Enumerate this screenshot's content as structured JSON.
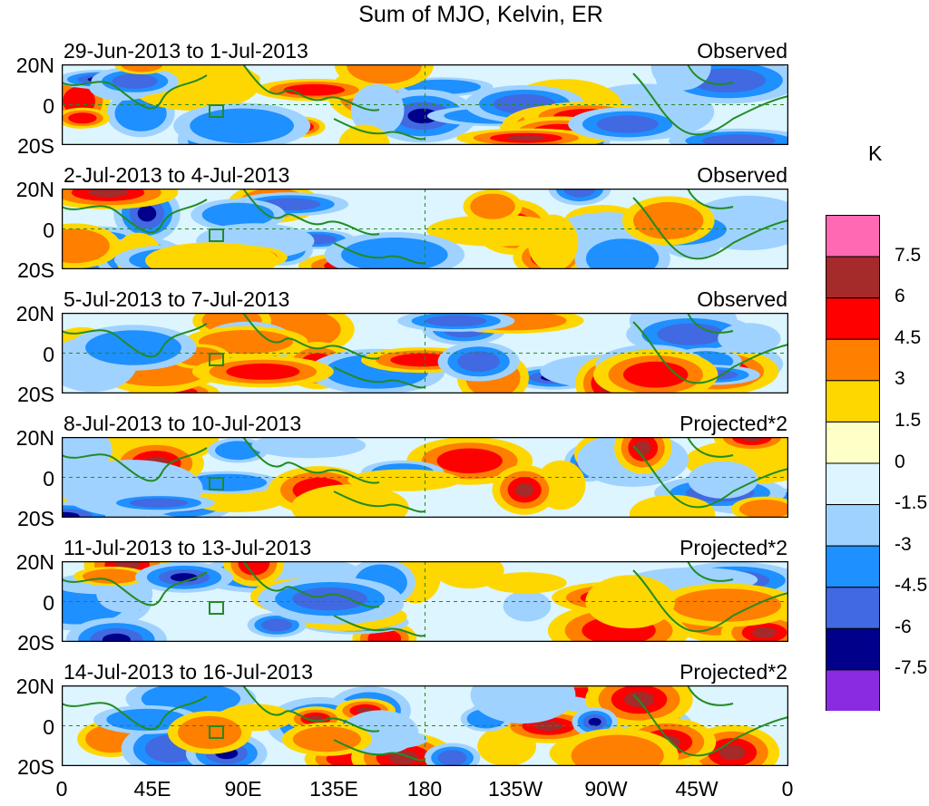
{
  "title": "Sum of MJO, Kelvin, ER",
  "y_ticks": [
    "20N",
    "0",
    "20S"
  ],
  "x_ticks": [
    "0",
    "45E",
    "90E",
    "135E",
    "180",
    "135W",
    "90W",
    "45W",
    "0"
  ],
  "colorbar": {
    "unit": "K",
    "labels": [
      "7.5",
      "6",
      "4.5",
      "3",
      "1.5",
      "0",
      "-1.5",
      "-3",
      "-4.5",
      "-6",
      "-7.5"
    ],
    "colors": [
      "#ff69b4",
      "#a52a2a",
      "#ff0000",
      "#ff7f00",
      "#ffd700",
      "#ffffc8",
      "#dcf5ff",
      "#a0d2ff",
      "#1e90ff",
      "#4169e1",
      "#00008b",
      "#8a2be2"
    ]
  },
  "panels": [
    {
      "dates": "29-Jun-2013 to 1-Jul-2013",
      "type": "Observed"
    },
    {
      "dates": "2-Jul-2013 to 4-Jul-2013",
      "type": "Observed"
    },
    {
      "dates": "5-Jul-2013 to 7-Jul-2013",
      "type": "Observed"
    },
    {
      "dates": "8-Jul-2013 to 10-Jul-2013",
      "type": "Projected*2"
    },
    {
      "dates": "11-Jul-2013 to 13-Jul-2013",
      "type": "Projected*2"
    },
    {
      "dates": "14-Jul-2013 to 16-Jul-2013",
      "type": "Projected*2"
    }
  ]
}
